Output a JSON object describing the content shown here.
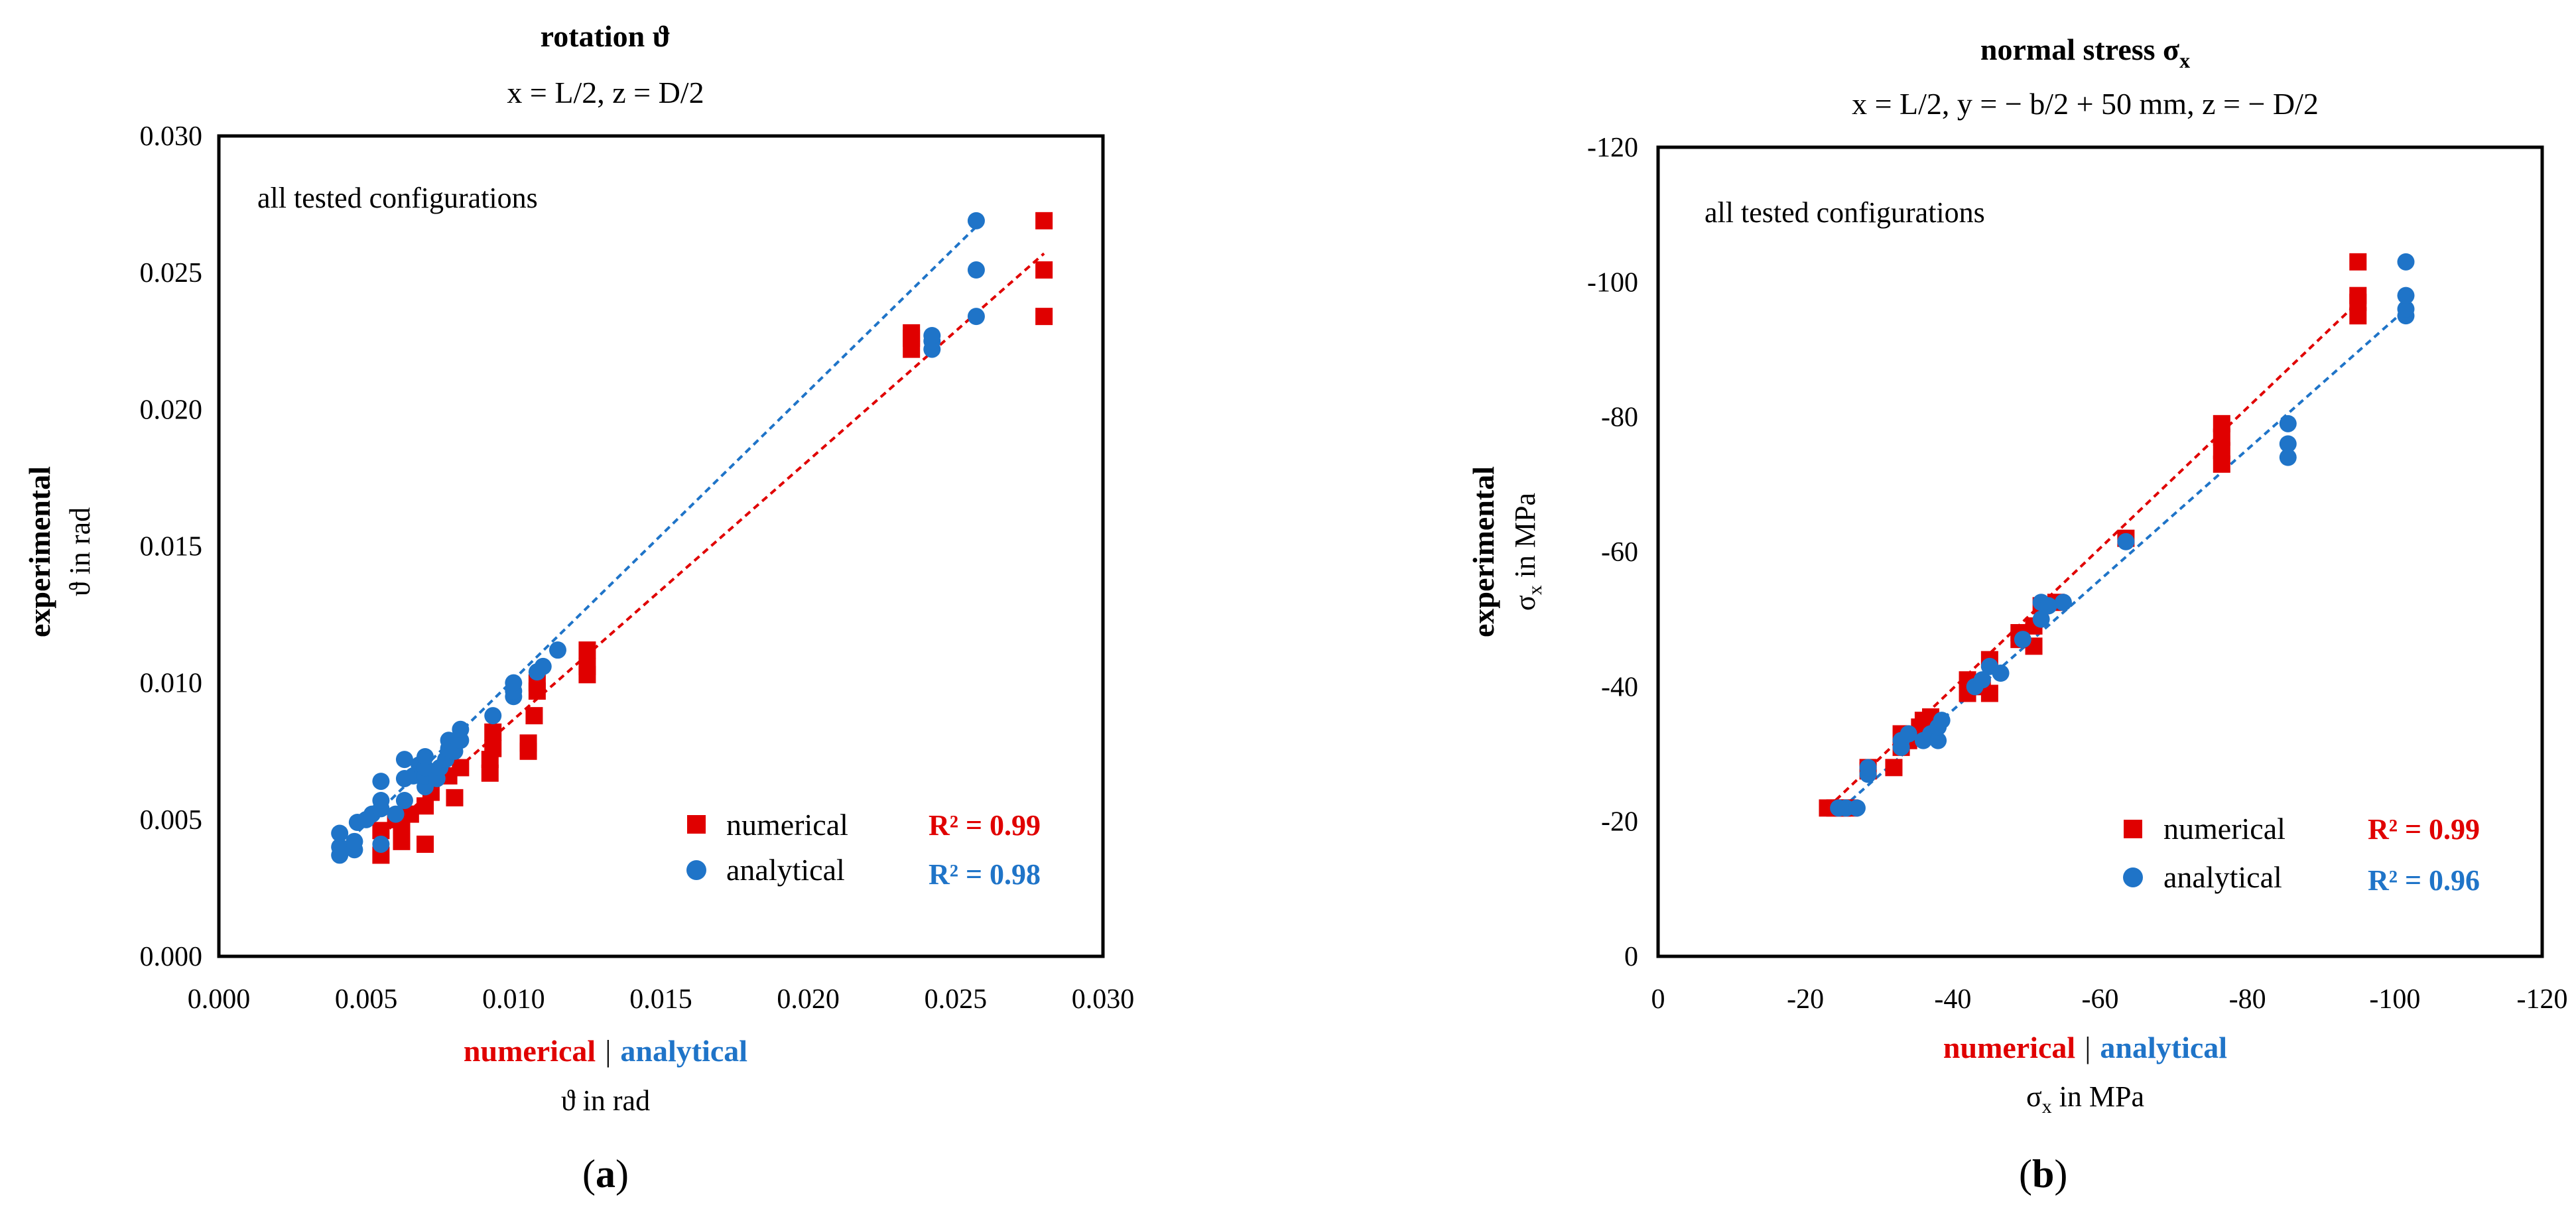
{
  "colors": {
    "numerical": "#e00000",
    "analytical": "#1f74c8",
    "frame": "#000000"
  },
  "chart_data": [
    {
      "type": "scatter",
      "panel_label": "a",
      "title": "rotation ϑ",
      "subtitle": "x = L/2, z = D/2",
      "annotation": "all tested configurations",
      "ylabel_bold": "experimental",
      "ylabel": "ϑ in rad",
      "xlabel_numerical": "numerical",
      "xlabel_separator": "|",
      "xlabel_analytical": "analytical",
      "xlabel_unit": "ϑ in rad",
      "xlim": [
        0,
        0.03
      ],
      "ylim": [
        0,
        0.03
      ],
      "xticks": [
        "0.000",
        "0.005",
        "0.010",
        "0.015",
        "0.020",
        "0.025",
        "0.030"
      ],
      "yticks": [
        "0.000",
        "0.005",
        "0.010",
        "0.015",
        "0.020",
        "0.025",
        "0.030"
      ],
      "legend": {
        "position": "bottom-right"
      },
      "series": [
        {
          "name": "numerical",
          "marker": "square",
          "r2": "R² = 0.99",
          "color_key": "numerical",
          "trend": [
            [
              0.0055,
              0.0044
            ],
            [
              0.028,
              0.0257
            ]
          ],
          "points": [
            [
              0.0055,
              0.0037
            ],
            [
              0.0055,
              0.0046
            ],
            [
              0.006,
              0.005
            ],
            [
              0.0062,
              0.0042
            ],
            [
              0.0062,
              0.0048
            ],
            [
              0.0065,
              0.0052
            ],
            [
              0.007,
              0.0041
            ],
            [
              0.007,
              0.0055
            ],
            [
              0.0072,
              0.006
            ],
            [
              0.0078,
              0.0066
            ],
            [
              0.008,
              0.0058
            ],
            [
              0.0082,
              0.0069
            ],
            [
              0.0092,
              0.0067
            ],
            [
              0.0092,
              0.0072
            ],
            [
              0.0093,
              0.0076
            ],
            [
              0.0093,
              0.0082
            ],
            [
              0.0105,
              0.0075
            ],
            [
              0.0105,
              0.0078
            ],
            [
              0.0107,
              0.0088
            ],
            [
              0.0108,
              0.0097
            ],
            [
              0.0108,
              0.01
            ],
            [
              0.0125,
              0.0103
            ],
            [
              0.0125,
              0.0106
            ],
            [
              0.0125,
              0.0112
            ],
            [
              0.0235,
              0.0222
            ],
            [
              0.0235,
              0.0226
            ],
            [
              0.0235,
              0.0228
            ],
            [
              0.028,
              0.0234
            ],
            [
              0.028,
              0.0251
            ],
            [
              0.028,
              0.0269
            ]
          ]
        },
        {
          "name": "analytical",
          "marker": "circle",
          "r2": "R² = 0.98",
          "color_key": "analytical",
          "trend": [
            [
              0.0042,
              0.004
            ],
            [
              0.026,
              0.027
            ]
          ],
          "points": [
            [
              0.0041,
              0.0037
            ],
            [
              0.0041,
              0.004
            ],
            [
              0.0041,
              0.0045
            ],
            [
              0.0046,
              0.0039
            ],
            [
              0.0046,
              0.0042
            ],
            [
              0.0047,
              0.0049
            ],
            [
              0.005,
              0.005
            ],
            [
              0.0052,
              0.0052
            ],
            [
              0.0055,
              0.0041
            ],
            [
              0.0055,
              0.0054
            ],
            [
              0.0055,
              0.0057
            ],
            [
              0.0055,
              0.0064
            ],
            [
              0.006,
              0.0052
            ],
            [
              0.0063,
              0.0057
            ],
            [
              0.0063,
              0.0065
            ],
            [
              0.0063,
              0.0072
            ],
            [
              0.0066,
              0.0066
            ],
            [
              0.0068,
              0.007
            ],
            [
              0.007,
              0.0062
            ],
            [
              0.007,
              0.0066
            ],
            [
              0.007,
              0.0069
            ],
            [
              0.007,
              0.0073
            ],
            [
              0.0074,
              0.0065
            ],
            [
              0.0075,
              0.0069
            ],
            [
              0.0077,
              0.0072
            ],
            [
              0.0078,
              0.0076
            ],
            [
              0.0078,
              0.0079
            ],
            [
              0.008,
              0.0075
            ],
            [
              0.0082,
              0.0079
            ],
            [
              0.0082,
              0.0083
            ],
            [
              0.0093,
              0.0088
            ],
            [
              0.01,
              0.0095
            ],
            [
              0.01,
              0.0097
            ],
            [
              0.01,
              0.01
            ],
            [
              0.0108,
              0.0104
            ],
            [
              0.011,
              0.0106
            ],
            [
              0.0115,
              0.0112
            ],
            [
              0.0242,
              0.0222
            ],
            [
              0.0242,
              0.0225
            ],
            [
              0.0242,
              0.0227
            ],
            [
              0.0257,
              0.0234
            ],
            [
              0.0257,
              0.0251
            ],
            [
              0.0257,
              0.0269
            ]
          ]
        }
      ]
    },
    {
      "type": "scatter",
      "panel_label": "b",
      "title": "normal stress σ",
      "title_sub": "x",
      "subtitle": "x = L/2, y = − b/2 + 50 mm, z = − D/2",
      "annotation": "all tested configurations",
      "ylabel_bold": "experimental",
      "ylabel": "σ",
      "ylabel_sub": "x",
      "ylabel_unit": " in MPa",
      "xlabel_numerical": "numerical",
      "xlabel_separator": "|",
      "xlabel_analytical": "analytical",
      "xlabel": "σ",
      "xlabel_sub": "x",
      "xlabel_unit": " in MPa",
      "xlim": [
        0,
        -120
      ],
      "ylim": [
        0,
        -120
      ],
      "xticks": [
        "0",
        "-20",
        "-40",
        "-60",
        "-80",
        "-100",
        "-120"
      ],
      "yticks": [
        "0",
        "-20",
        "-40",
        "-60",
        "-80",
        "-100",
        "-120"
      ],
      "legend": {
        "position": "bottom-right"
      },
      "series": [
        {
          "name": "numerical",
          "marker": "square",
          "r2": "R² = 0.99",
          "color_key": "numerical",
          "trend": [
            [
              -23,
              -22
            ],
            [
              -95,
              -97
            ]
          ],
          "points": [
            [
              -23,
              -22
            ],
            [
              -24,
              -22
            ],
            [
              -25,
              -22
            ],
            [
              -26,
              -22
            ],
            [
              -28.5,
              -27.5
            ],
            [
              -28.5,
              -28
            ],
            [
              -32,
              -28
            ],
            [
              -33,
              -31
            ],
            [
              -33,
              -33
            ],
            [
              -34,
              -32
            ],
            [
              -35.5,
              -34
            ],
            [
              -36,
              -35
            ],
            [
              -37,
              -35.5
            ],
            [
              -42,
              -39
            ],
            [
              -42,
              -41
            ],
            [
              -44,
              -40
            ],
            [
              -45,
              -39
            ],
            [
              -45,
              -44
            ],
            [
              -49,
              -47
            ],
            [
              -49,
              -48
            ],
            [
              -51,
              -46
            ],
            [
              -51,
              -49
            ],
            [
              -52,
              -52
            ],
            [
              -54,
              -52.5
            ],
            [
              -63.5,
              -62
            ],
            [
              -76.5,
              -73
            ],
            [
              -76.5,
              -75
            ],
            [
              -76.5,
              -77
            ],
            [
              -76.5,
              -79
            ],
            [
              -95,
              -95
            ],
            [
              -95,
              -97
            ],
            [
              -95,
              -98
            ],
            [
              -95,
              -103
            ]
          ]
        },
        {
          "name": "analytical",
          "marker": "circle",
          "r2": "R² = 0.96",
          "color_key": "analytical",
          "trend": [
            [
              -25,
              -22
            ],
            [
              -101,
              -95.5
            ]
          ],
          "points": [
            [
              -24.5,
              -22
            ],
            [
              -25.5,
              -22
            ],
            [
              -27,
              -22
            ],
            [
              -28.5,
              -27
            ],
            [
              -28.5,
              -28
            ],
            [
              -33,
              -31
            ],
            [
              -33,
              -32
            ],
            [
              -34,
              -33
            ],
            [
              -36,
              -32
            ],
            [
              -37,
              -33
            ],
            [
              -38,
              -32
            ],
            [
              -38,
              -34
            ],
            [
              -38.5,
              -35
            ],
            [
              -43,
              -40
            ],
            [
              -44,
              -41
            ],
            [
              -45,
              -43
            ],
            [
              -46.5,
              -42
            ],
            [
              -49.5,
              -47
            ],
            [
              -52,
              -50
            ],
            [
              -52,
              -52.5
            ],
            [
              -53,
              -52
            ],
            [
              -55,
              -52.5
            ],
            [
              -63.5,
              -61.5
            ],
            [
              -85.5,
              -74
            ],
            [
              -85.5,
              -76
            ],
            [
              -85.5,
              -79
            ],
            [
              -101.5,
              -95
            ],
            [
              -101.5,
              -96
            ],
            [
              -101.5,
              -98
            ],
            [
              -101.5,
              -103
            ]
          ]
        }
      ]
    }
  ]
}
